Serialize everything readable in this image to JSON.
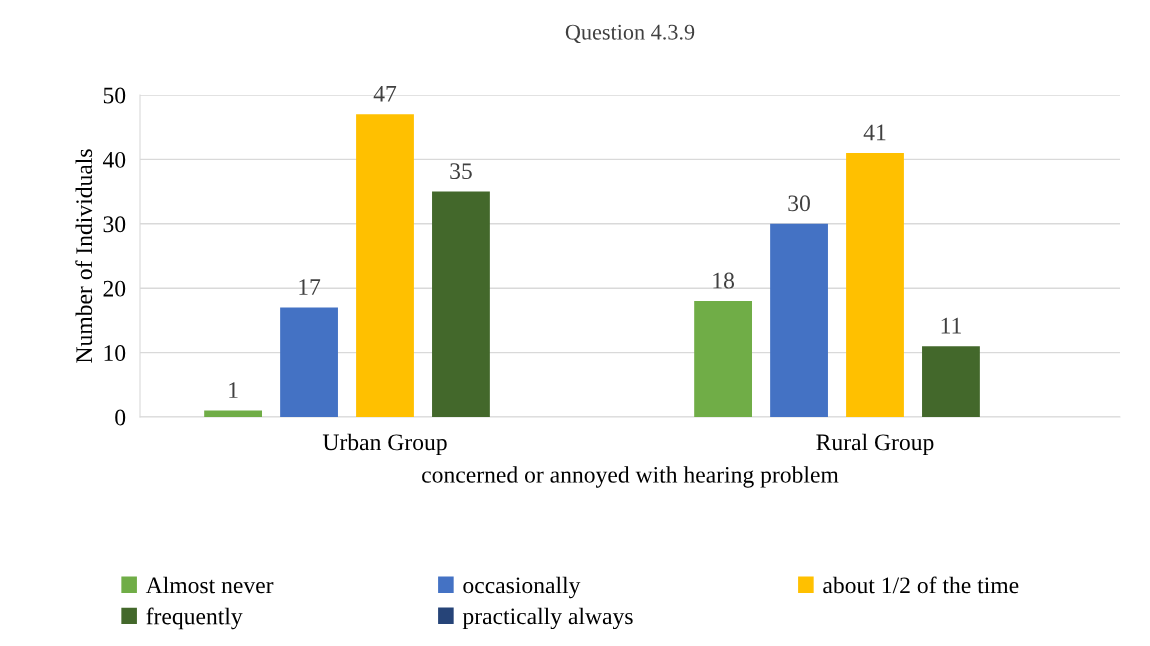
{
  "chart_data": {
    "type": "bar",
    "title": "Question 4.3.9",
    "xlabel": "concerned or annoyed with hearing problem",
    "ylabel": "Number of Individuals",
    "categories": [
      "Urban Group",
      "Rural Group"
    ],
    "series": [
      {
        "name": "Almost never",
        "color": "#70ad47",
        "values": [
          1,
          18
        ]
      },
      {
        "name": "occasionally",
        "color": "#4472c4",
        "values": [
          17,
          30
        ]
      },
      {
        "name": "about 1/2 of the time",
        "color": "#ffc000",
        "values": [
          47,
          41
        ]
      },
      {
        "name": "frequently",
        "color": "#43682b",
        "values": [
          35,
          11
        ]
      },
      {
        "name": "practically always",
        "color": "#264478",
        "values": [
          null,
          null
        ]
      }
    ],
    "ylim": [
      0,
      50
    ],
    "yticks": [
      0,
      10,
      20,
      30,
      40,
      50
    ],
    "grid": "y",
    "legend": "bottom",
    "data_labels": true
  }
}
